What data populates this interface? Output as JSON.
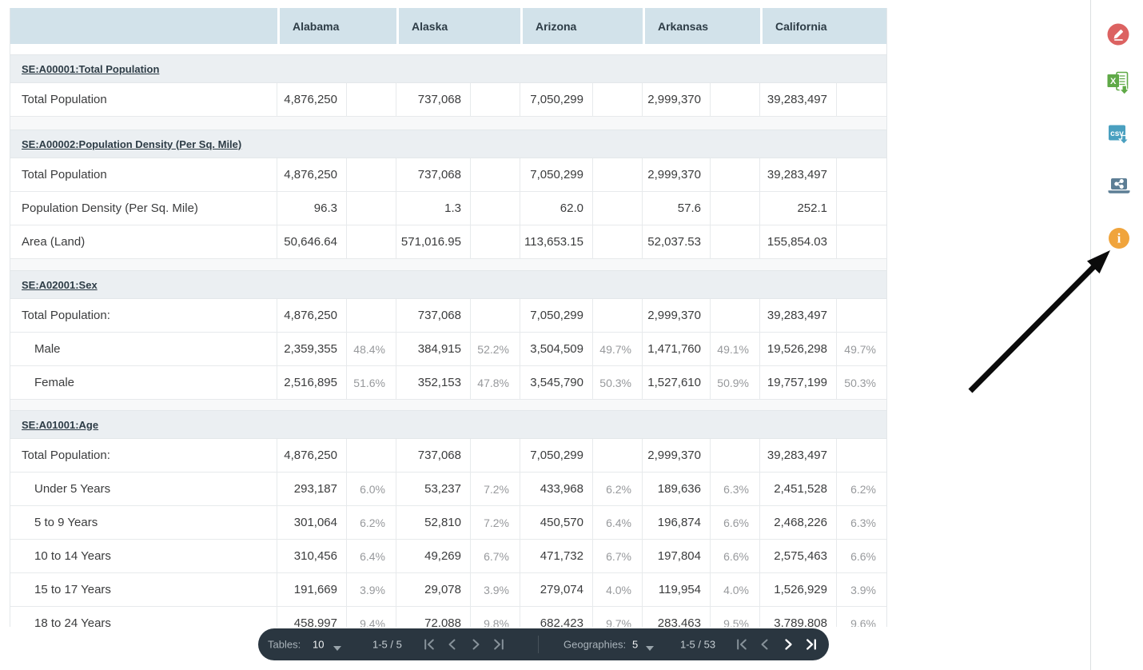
{
  "table": {
    "columns": [
      "Alabama",
      "Alaska",
      "Arizona",
      "Arkansas",
      "California"
    ],
    "sections": [
      {
        "code_label": "SE:A00001:Total Population",
        "rows": [
          {
            "label": "Total Population",
            "indent": false,
            "values": [
              "4,876,250",
              "737,068",
              "7,050,299",
              "2,999,370",
              "39,283,497"
            ],
            "pcts": [
              "",
              "",
              "",
              "",
              ""
            ]
          }
        ]
      },
      {
        "code_label": "SE:A00002:Population Density (Per Sq. Mile)",
        "rows": [
          {
            "label": "Total Population",
            "indent": false,
            "values": [
              "4,876,250",
              "737,068",
              "7,050,299",
              "2,999,370",
              "39,283,497"
            ],
            "pcts": [
              "",
              "",
              "",
              "",
              ""
            ]
          },
          {
            "label": "Population Density (Per Sq. Mile)",
            "indent": false,
            "values": [
              "96.3",
              "1.3",
              "62.0",
              "57.6",
              "252.1"
            ],
            "pcts": [
              "",
              "",
              "",
              "",
              ""
            ]
          },
          {
            "label": "Area (Land)",
            "indent": false,
            "values": [
              "50,646.64",
              "571,016.95",
              "113,653.15",
              "52,037.53",
              "155,854.03"
            ],
            "pcts": [
              "",
              "",
              "",
              "",
              ""
            ]
          }
        ]
      },
      {
        "code_label": "SE:A02001:Sex",
        "rows": [
          {
            "label": "Total Population:",
            "indent": false,
            "values": [
              "4,876,250",
              "737,068",
              "7,050,299",
              "2,999,370",
              "39,283,497"
            ],
            "pcts": [
              "",
              "",
              "",
              "",
              ""
            ]
          },
          {
            "label": "Male",
            "indent": true,
            "values": [
              "2,359,355",
              "384,915",
              "3,504,509",
              "1,471,760",
              "19,526,298"
            ],
            "pcts": [
              "48.4%",
              "52.2%",
              "49.7%",
              "49.1%",
              "49.7%"
            ]
          },
          {
            "label": "Female",
            "indent": true,
            "values": [
              "2,516,895",
              "352,153",
              "3,545,790",
              "1,527,610",
              "19,757,199"
            ],
            "pcts": [
              "51.6%",
              "47.8%",
              "50.3%",
              "50.9%",
              "50.3%"
            ]
          }
        ]
      },
      {
        "code_label": "SE:A01001:Age",
        "rows": [
          {
            "label": "Total Population:",
            "indent": false,
            "values": [
              "4,876,250",
              "737,068",
              "7,050,299",
              "2,999,370",
              "39,283,497"
            ],
            "pcts": [
              "",
              "",
              "",
              "",
              ""
            ]
          },
          {
            "label": "Under 5 Years",
            "indent": true,
            "values": [
              "293,187",
              "53,237",
              "433,968",
              "189,636",
              "2,451,528"
            ],
            "pcts": [
              "6.0%",
              "7.2%",
              "6.2%",
              "6.3%",
              "6.2%"
            ]
          },
          {
            "label": "5 to 9 Years",
            "indent": true,
            "values": [
              "301,064",
              "52,810",
              "450,570",
              "196,874",
              "2,468,226"
            ],
            "pcts": [
              "6.2%",
              "7.2%",
              "6.4%",
              "6.6%",
              "6.3%"
            ]
          },
          {
            "label": "10 to 14 Years",
            "indent": true,
            "values": [
              "310,456",
              "49,269",
              "471,732",
              "197,804",
              "2,575,463"
            ],
            "pcts": [
              "6.4%",
              "6.7%",
              "6.7%",
              "6.6%",
              "6.6%"
            ]
          },
          {
            "label": "15 to 17 Years",
            "indent": true,
            "values": [
              "191,669",
              "29,078",
              "279,074",
              "119,954",
              "1,526,929"
            ],
            "pcts": [
              "3.9%",
              "3.9%",
              "4.0%",
              "4.0%",
              "3.9%"
            ]
          },
          {
            "label": "18 to 24 Years",
            "indent": true,
            "values": [
              "458,997",
              "72,088",
              "682,423",
              "283,463",
              "3,789,808"
            ],
            "pcts": [
              "9.4%",
              "9.8%",
              "9.7%",
              "9.5%",
              "9.6%"
            ]
          }
        ]
      }
    ]
  },
  "paginator": {
    "tables_label": "Tables:",
    "tables_page_size": "10",
    "tables_range": "1-5 / 5",
    "geos_label": "Geographies:",
    "geos_page_size": "5",
    "geos_range": "1-5 / 53"
  },
  "toolbar": {
    "icons": [
      "edit",
      "excel-export",
      "csv-export",
      "share",
      "info"
    ]
  },
  "colors": {
    "header_bg": "#d2e2ea",
    "section_bg": "#ebeff2",
    "pill_bg": "#2a3640",
    "edit_red": "#dc6261",
    "excel_green": "#5fa947",
    "csv_teal": "#4aa0c0",
    "share_slate": "#5d7e95",
    "info_orange": "#f0a43c"
  }
}
